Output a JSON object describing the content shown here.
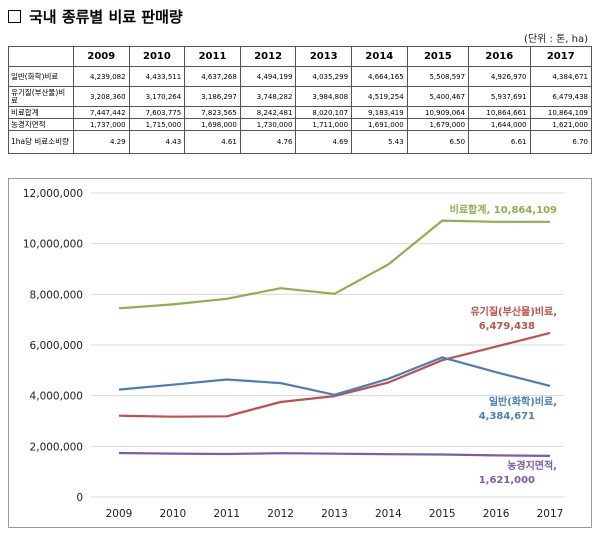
{
  "header": {
    "title": "국내 종류별 비료 판매량",
    "unit": "(단위 : 톤, ha)"
  },
  "table": {
    "years": [
      "2009",
      "2010",
      "2011",
      "2012",
      "2013",
      "2014",
      "2015",
      "2016",
      "2017"
    ],
    "rows": [
      {
        "label": "일반(화학)비료",
        "cells": [
          "4,239,082",
          "4,433,511",
          "4,637,268",
          "4,494,199",
          "4,035,299",
          "4,664,165",
          "5,508,597",
          "4,926,970",
          "4,384,671"
        ]
      },
      {
        "label": "유기질(부산물)비료",
        "cells": [
          "3,208,360",
          "3,170,264",
          "3,186,297",
          "3,748,282",
          "3,984,808",
          "4,519,254",
          "5,400,467",
          "5,937,691",
          "6,479,438"
        ]
      },
      {
        "label": "비료합계",
        "cells": [
          "7,447,442",
          "7,603,775",
          "7,823,565",
          "8,242,481",
          "8,020,107",
          "9,183,419",
          "10,909,064",
          "10,864,661",
          "10,864,109"
        ]
      },
      {
        "label": "농경지면적",
        "cells": [
          "1,737,000",
          "1,715,000",
          "1,698,000",
          "1,730,000",
          "1,711,000",
          "1,691,000",
          "1,679,000",
          "1,644,000",
          "1,621,000"
        ]
      },
      {
        "label": "1ha당 비료소비량",
        "cells": [
          "4.29",
          "4.43",
          "4.61",
          "4.76",
          "4.69",
          "5.43",
          "6.50",
          "6.61",
          "6.70"
        ]
      }
    ]
  },
  "chart_data": {
    "type": "line",
    "x": [
      "2009",
      "2010",
      "2011",
      "2012",
      "2013",
      "2014",
      "2015",
      "2016",
      "2017"
    ],
    "ylim": [
      0,
      12000000
    ],
    "yticks": [
      {
        "v": 0,
        "t": "0"
      },
      {
        "v": 2000000,
        "t": "2,000,000"
      },
      {
        "v": 4000000,
        "t": "4,000,000"
      },
      {
        "v": 6000000,
        "t": "6,000,000"
      },
      {
        "v": 8000000,
        "t": "8,000,000"
      },
      {
        "v": 10000000,
        "t": "10,000,000"
      },
      {
        "v": 12000000,
        "t": "12,000,000"
      }
    ],
    "grid": true,
    "series": [
      {
        "name": "비료합계",
        "color": "#8db04e",
        "end_label": "10,864,109",
        "values": [
          7447442,
          7603775,
          7823565,
          8242481,
          8020107,
          9183419,
          10909064,
          10864661,
          10864109
        ]
      },
      {
        "name": "유기질(부산물)비료",
        "color": "#c0504d",
        "end_label": "6,479,438",
        "values": [
          3208360,
          3170264,
          3186297,
          3748282,
          3984808,
          4519254,
          5400467,
          5937691,
          6479438
        ]
      },
      {
        "name": "일반(화학)비료",
        "color": "#4a7ebb",
        "end_label": "4,384,671",
        "values": [
          4239082,
          4433511,
          4637268,
          4494199,
          4035299,
          4664165,
          5508597,
          4926970,
          4384671
        ]
      },
      {
        "name": "농경지면적",
        "color": "#7f5aa8",
        "end_label": "1,621,000",
        "values": [
          1737000,
          1715000,
          1698000,
          1730000,
          1711000,
          1691000,
          1679000,
          1644000,
          1621000
        ]
      }
    ]
  }
}
